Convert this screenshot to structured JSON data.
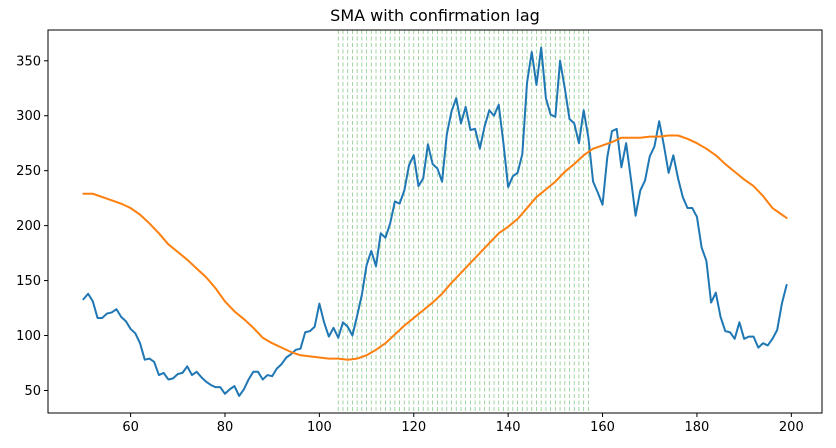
{
  "chart_data": {
    "type": "line",
    "title": "SMA with confirmation lag",
    "xlabel": "",
    "ylabel": "",
    "xlim": [
      42.5,
      206.5
    ],
    "ylim": [
      29.5,
      378
    ],
    "xticks": [
      60,
      80,
      100,
      120,
      140,
      160,
      180,
      200
    ],
    "yticks": [
      50,
      100,
      150,
      200,
      250,
      300,
      350
    ],
    "grid": false,
    "legend": "none",
    "shaded_region": {
      "x_start": 104,
      "x_end": 157,
      "color": "#2ca02c",
      "style": "dashed vertical lines"
    },
    "series": [
      {
        "color": "#1f77b4",
        "x": [
          50,
          51,
          52,
          53,
          54,
          55,
          56,
          57,
          58,
          59,
          60,
          61,
          62,
          63,
          64,
          65,
          66,
          67,
          68,
          69,
          70,
          71,
          72,
          73,
          74,
          75,
          76,
          77,
          78,
          79,
          80,
          81,
          82,
          83,
          84,
          85,
          86,
          87,
          88,
          89,
          90,
          91,
          92,
          93,
          94,
          95,
          96,
          97,
          98,
          99,
          100,
          101,
          102,
          103,
          104,
          105,
          106,
          107,
          108,
          109,
          110,
          111,
          112,
          113,
          114,
          115,
          116,
          117,
          118,
          119,
          120,
          121,
          122,
          123,
          124,
          125,
          126,
          127,
          128,
          129,
          130,
          131,
          132,
          133,
          134,
          135,
          136,
          137,
          138,
          139,
          140,
          141,
          142,
          143,
          144,
          145,
          146,
          147,
          148,
          149,
          150,
          151,
          152,
          153,
          154,
          155,
          156,
          157,
          158,
          159,
          160,
          161,
          162,
          163,
          164,
          165,
          166,
          167,
          168,
          169,
          170,
          171,
          172,
          173,
          174,
          175,
          176,
          177,
          178,
          179,
          180,
          181,
          182,
          183,
          184,
          185,
          186,
          187,
          188,
          189,
          190,
          191,
          192,
          193,
          194,
          195,
          196,
          197,
          198,
          199
        ],
        "values": [
          133,
          138,
          131,
          116,
          116,
          120,
          121,
          124,
          117,
          113,
          106,
          102,
          93,
          78,
          79,
          76,
          64,
          66,
          60,
          61,
          65,
          66,
          72,
          64,
          67,
          62,
          58,
          55,
          53,
          53,
          47,
          51,
          54,
          45,
          51,
          60,
          67,
          67,
          60,
          64,
          63,
          70,
          74,
          80,
          83,
          87,
          88,
          103,
          104,
          108,
          129,
          112,
          99,
          107,
          98,
          112,
          108,
          100,
          118,
          137,
          164,
          177,
          163,
          193,
          189,
          202,
          222,
          220,
          232,
          255,
          264,
          236,
          243,
          274,
          256,
          252,
          240,
          283,
          304,
          316,
          293,
          308,
          287,
          288,
          270,
          290,
          305,
          300,
          310,
          275,
          235,
          245,
          248,
          265,
          330,
          358,
          328,
          362,
          316,
          301,
          299,
          350,
          325,
          297,
          293,
          275,
          305,
          280,
          240,
          230,
          219,
          262,
          286,
          288,
          253,
          275,
          243,
          209,
          232,
          241,
          263,
          272,
          295,
          273,
          248,
          264,
          243,
          226,
          216,
          216,
          208,
          180,
          168,
          130,
          139,
          117,
          104,
          103,
          97,
          112,
          97,
          99,
          99,
          89,
          93,
          91,
          97,
          105,
          129,
          146
        ]
      },
      {
        "color": "#ff7f0e",
        "x": [
          50,
          52,
          54,
          56,
          58,
          60,
          62,
          64,
          66,
          68,
          70,
          72,
          74,
          76,
          78,
          80,
          82,
          84,
          86,
          88,
          90,
          92,
          94,
          96,
          98,
          100,
          102,
          104,
          106,
          108,
          110,
          112,
          114,
          116,
          118,
          120,
          122,
          124,
          126,
          128,
          130,
          132,
          134,
          136,
          138,
          140,
          142,
          144,
          146,
          148,
          150,
          152,
          154,
          156,
          158,
          160,
          162,
          164,
          166,
          168,
          170,
          172,
          174,
          176,
          178,
          180,
          182,
          184,
          186,
          188,
          190,
          192,
          194,
          196,
          198,
          199
        ],
        "values": [
          229,
          229,
          226,
          223,
          220,
          216,
          210,
          202,
          193,
          183,
          176,
          169,
          161,
          153,
          143,
          131,
          122,
          115,
          107,
          98,
          93,
          89,
          85,
          82,
          81,
          80,
          79,
          79,
          78,
          79,
          82,
          87,
          93,
          101,
          109,
          116,
          123,
          130,
          138,
          148,
          157,
          166,
          175,
          184,
          193,
          199,
          206,
          216,
          226,
          233,
          240,
          249,
          256,
          264,
          270,
          273,
          276,
          280,
          280,
          280,
          281,
          281,
          282,
          282,
          279,
          275,
          270,
          264,
          256,
          249,
          242,
          236,
          227,
          216,
          210,
          207
        ]
      }
    ]
  }
}
